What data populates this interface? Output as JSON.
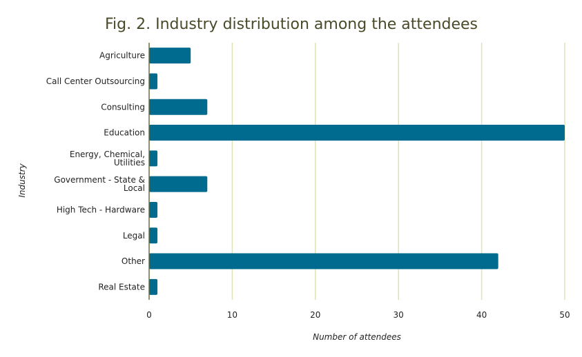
{
  "colors": {
    "bar": "#006b8f",
    "grid": "#dde3b6",
    "axis": "#6b6b3d",
    "title": "#4a4a2a"
  },
  "chart_data": {
    "type": "bar",
    "orientation": "horizontal",
    "title": "Fig. 2. Industry distribution among the attendees",
    "xlabel": "Number of attendees",
    "ylabel": "Industry",
    "categories": [
      "Agriculture",
      "Call Center Outsourcing",
      "Consulting",
      "Education",
      "Energy, Chemical, Utilities",
      "Government - State & Local",
      "High Tech - Hardware",
      "Legal",
      "Other",
      "Real Estate"
    ],
    "values": [
      5,
      1,
      7,
      50,
      1,
      7,
      1,
      1,
      42,
      1
    ],
    "xlim": [
      0,
      50
    ],
    "xticks": [
      0,
      10,
      20,
      30,
      40,
      50
    ],
    "grid": true,
    "legend": "none"
  }
}
